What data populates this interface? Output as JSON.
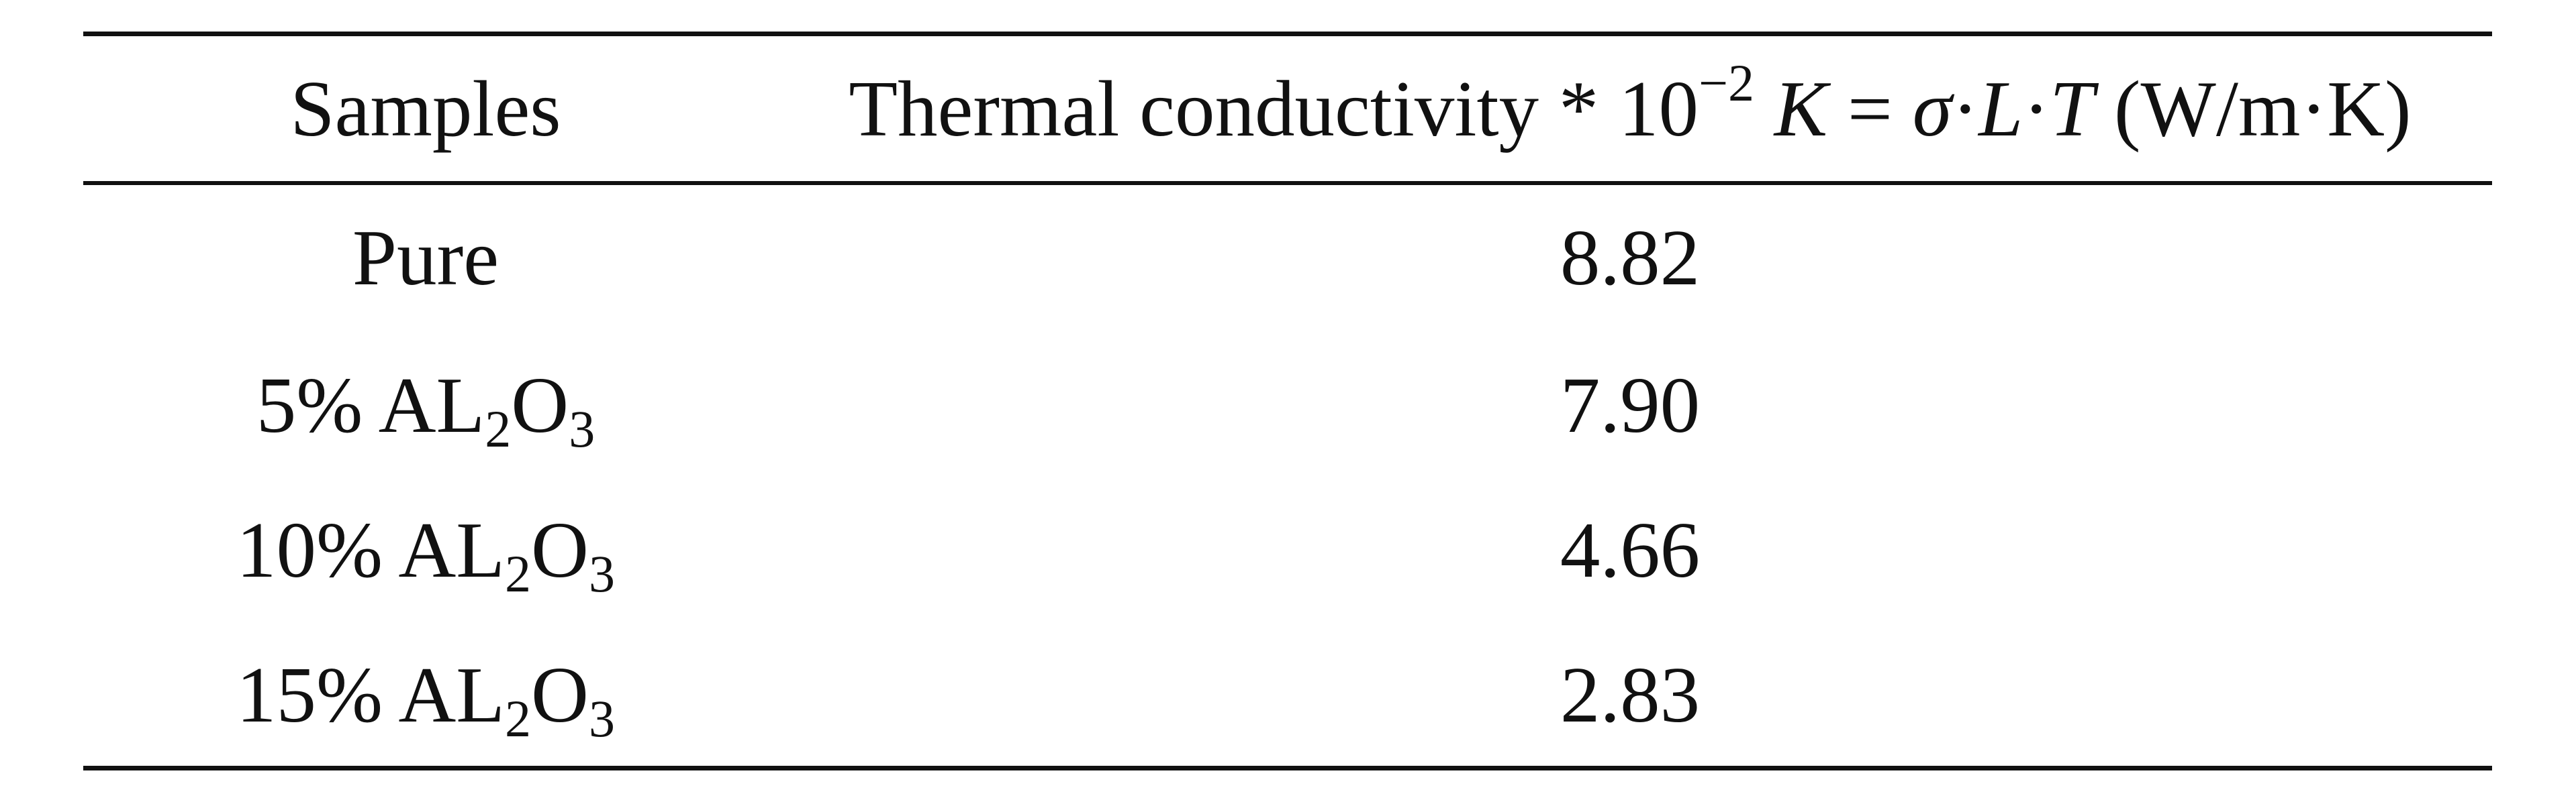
{
  "table": {
    "header": {
      "col1": "Samples",
      "col2": {
        "prefix": "Thermal conductivity * 10",
        "exponent": "−2",
        "formula_k": "K",
        "equals": " = ",
        "formula_sigma": "σ",
        "dot1": "·",
        "formula_l": "L",
        "dot2": "·",
        "formula_t": "T",
        "unit": " (W/m·K)"
      }
    },
    "rows": [
      {
        "sample_pre": "Pure",
        "sample_sub": "",
        "sample_post": "",
        "sample_sub2": "",
        "value": "8.82"
      },
      {
        "sample_pre": "5% AL",
        "sample_sub": "2",
        "sample_post": "O",
        "sample_sub2": "3",
        "value": "7.90"
      },
      {
        "sample_pre": "10% AL",
        "sample_sub": "2",
        "sample_post": "O",
        "sample_sub2": "3",
        "value": "4.66"
      },
      {
        "sample_pre": "15% AL",
        "sample_sub": "2",
        "sample_post": "O",
        "sample_sub2": "3",
        "value": "2.83"
      }
    ]
  }
}
